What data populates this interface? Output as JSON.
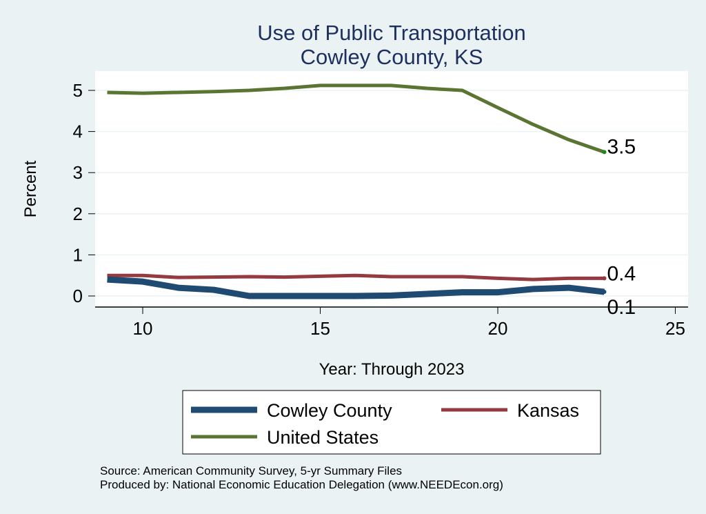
{
  "chart_data": {
    "type": "line",
    "title": "Use of Public Transportation",
    "subtitle": "Cowley County, KS",
    "xlabel": "Year: Through 2023",
    "ylabel": "Percent",
    "xlim": [
      9,
      25
    ],
    "ylim": [
      0,
      5
    ],
    "xticks": [
      "10",
      "15",
      "20",
      "25"
    ],
    "yticks": [
      "0",
      "1",
      "2",
      "3",
      "4",
      "5"
    ],
    "grid": true,
    "legend_position": "bottom",
    "x": [
      9,
      10,
      11,
      12,
      13,
      14,
      15,
      16,
      17,
      18,
      19,
      20,
      21,
      22,
      23
    ],
    "series": [
      {
        "name": "Cowley County",
        "color": "#1f4a72",
        "end_label": "0.1",
        "values": [
          0.4,
          0.35,
          0.2,
          0.15,
          0.0,
          0.0,
          0.0,
          0.0,
          0.01,
          0.05,
          0.09,
          0.09,
          0.17,
          0.2,
          0.1
        ]
      },
      {
        "name": "Kansas",
        "color": "#943a40",
        "end_label": "0.4",
        "values": [
          0.5,
          0.5,
          0.45,
          0.46,
          0.47,
          0.46,
          0.48,
          0.5,
          0.47,
          0.47,
          0.47,
          0.43,
          0.4,
          0.43,
          0.43
        ]
      },
      {
        "name": "United States",
        "color": "#5a7532",
        "end_label": "3.5",
        "values": [
          4.95,
          4.93,
          4.95,
          4.97,
          5.0,
          5.05,
          5.12,
          5.12,
          5.12,
          5.05,
          5.0,
          4.58,
          4.17,
          3.8,
          3.5
        ]
      }
    ],
    "notes": [
      "Source: American Community Survey, 5-yr Summary Files",
      "Produced by: National Economic Education Delegation (www.NEEDEcon.org)"
    ]
  }
}
